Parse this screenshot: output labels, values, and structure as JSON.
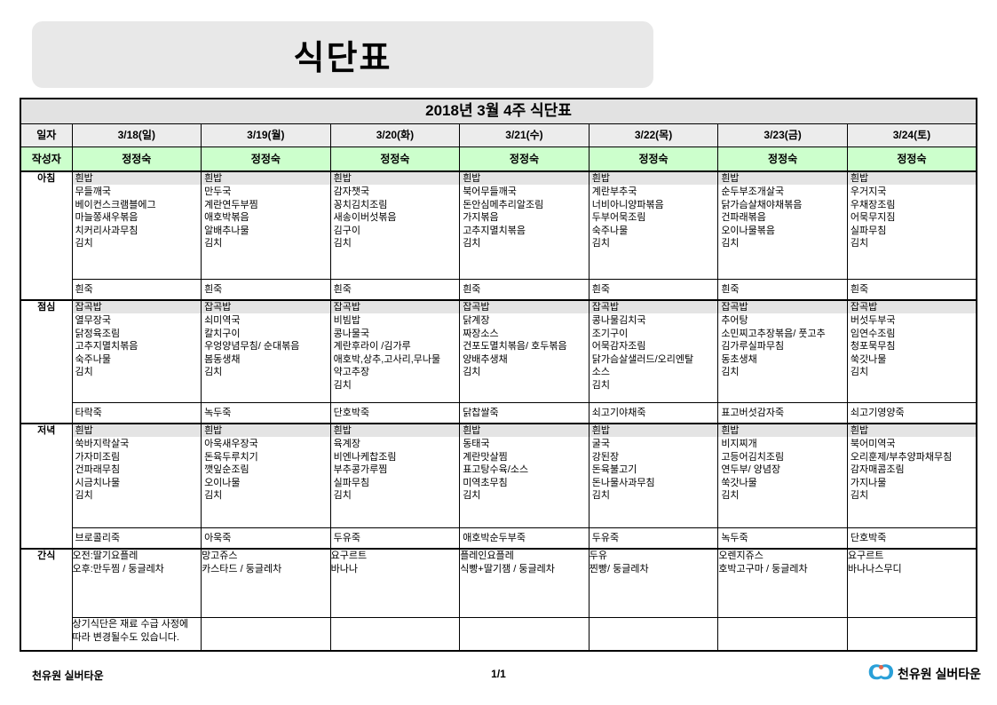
{
  "title": "식단표",
  "table": {
    "header": "2018년 3월 4주 식단표",
    "date_label": "일자",
    "author_label": "작성자",
    "dates": [
      "3/18(일)",
      "3/19(월)",
      "3/20(화)",
      "3/21(수)",
      "3/22(목)",
      "3/23(금)",
      "3/24(토)"
    ],
    "authors": [
      "정정숙",
      "정정숙",
      "정정숙",
      "정정숙",
      "정정숙",
      "정정숙",
      "정정숙"
    ],
    "meals": [
      {
        "label": "아침",
        "rice": "흰밥",
        "items": [
          "무들깨국\n베이컨스크램블에그\n마늘쫑새우볶음\n치커리사과무침\n김치",
          "만두국\n계란연두부찜\n애호박볶음\n알배추나물\n김치",
          "감자챗국\n꽁치김치조림\n새송이버섯볶음\n김구이\n김치",
          "북어무들깨국\n돈안심메추리알조림\n가지볶음\n고추지멸치볶음\n김치",
          "계란부추국\n너비아니양파볶음\n두부어묵조림\n숙주나물\n김치",
          "순두부조개살국\n닭가슴살채야채볶음\n건파래볶음\n오이나물볶음\n김치",
          "우거지국\n우채장조림\n어묵무지짐\n실파무침\n김치"
        ],
        "porridge": [
          "흰죽",
          "흰죽",
          "흰죽",
          "흰죽",
          "흰죽",
          "흰죽",
          "흰죽"
        ]
      },
      {
        "label": "점심",
        "rice": "잡곡밥",
        "items": [
          "열무장국\n닭정육조림\n고추지멸치볶음\n숙주나물\n김치",
          "쇠미역국\n칼치구이\n우엉양념무침/ 순대볶음\n봄동생채\n김치",
          "비빔밥\n콩나물국\n계란후라이 /김가루\n애호박,상추,고사리,무나물\n약고추장\n김치",
          "닭계장\n짜장소스\n건포도멸치볶음/ 호두볶음\n양배추생채\n김치",
          "콩나물김치국\n조기구이\n어묵감자조림\n닭가슴살샐러드/오리엔탈\n소스\n김치",
          "추어탕\n소민찌고추장볶음/ 풋고추\n김가루실파무침\n동초생채\n김치",
          "버섯두부국\n임연수조림\n청포묵무침\n쑥갓나물\n김치"
        ],
        "porridge": [
          "타락죽",
          "녹두죽",
          "단호박죽",
          "닭찹쌀죽",
          "쇠고기야채죽",
          "표고버섯감자죽",
          "쇠고기영양죽"
        ]
      },
      {
        "label": "저녁",
        "rice": "흰밥",
        "items": [
          "쑥바지락살국\n가자미조림\n건파래무침\n시금치나물\n김치",
          "아욱새우장국\n돈육두루치기\n깻잎순조림\n오이나물\n김치",
          "육계장\n비엔나케찹조림\n부추콩가루찜\n실파무침\n김치",
          "동태국\n계란맛살찜\n표고탕수육/소스\n미역초무침\n김치",
          "굴국\n강된장\n돈육불고기\n돈나물사과무침\n김치",
          "비지찌개\n고등어김치조림\n연두부/ 양념장\n쑥갓나물\n김치",
          "북어미역국\n오리훈제/부추양파채무침\n감자매콤조림\n가지나물\n김치"
        ],
        "porridge": [
          "브로콜리죽",
          "아욱죽",
          "두유죽",
          "애호박순두부죽",
          "두유죽",
          "녹두죽",
          "단호박죽"
        ]
      }
    ],
    "snack": {
      "label": "간식",
      "cells": [
        "오전:딸기요플레\n오후:만두찜 / 둥글레차",
        "망고쥬스\n카스타드 / 둥글레차",
        "요구르트\n바나나",
        "플레인요플레\n식빵+딸기잼 / 둥글레차",
        "두유\n찐빵/ 둥글레차",
        "오렌지쥬스\n호박고구마 / 둥글레차",
        "요구르트\n바나나스무디"
      ],
      "footnote": "상기식단은 재료 수급 사정에\n따라 변경될수도 있습니다."
    }
  },
  "footer": {
    "left": "천유원 실버타운",
    "page_number": "1/1",
    "logo_text": "천유원 실버타운"
  }
}
